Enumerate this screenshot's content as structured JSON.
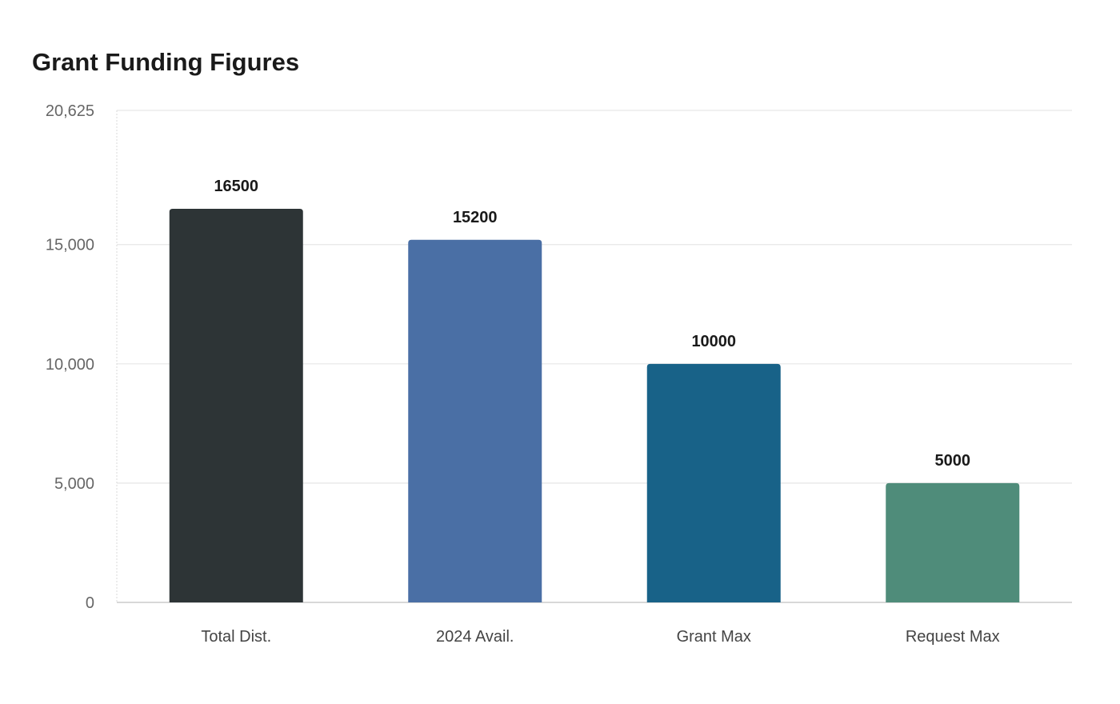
{
  "chart_data": {
    "type": "bar",
    "title": "Grant Funding Figures",
    "xlabel": "",
    "ylabel": "",
    "categories": [
      "Total Dist.",
      "2024 Avail.",
      "Grant Max",
      "Request Max"
    ],
    "values": [
      16500,
      15200,
      10000,
      5000
    ],
    "data_labels": [
      "16500",
      "15200",
      "10000",
      "5000"
    ],
    "colors": [
      "#2d3436",
      "#4a6fa5",
      "#186288",
      "#4f8c7a"
    ],
    "ylim": [
      0,
      20625
    ],
    "yticks": [
      0,
      5000,
      10000,
      15000,
      20625
    ],
    "ytick_labels": [
      "0",
      "5,000",
      "10,000",
      "15,000",
      "20,625"
    ],
    "grid": true,
    "legend": "none"
  }
}
